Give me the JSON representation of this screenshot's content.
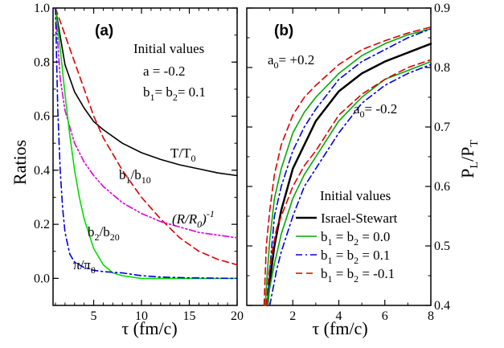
{
  "chart_data": [
    {
      "type": "line",
      "panel_label": "(a)",
      "xlabel": "τ (fm/c)",
      "ylabel": "Ratios",
      "xlim": [
        0.75,
        20
      ],
      "ylim": [
        -0.1,
        1.0
      ],
      "xticks": [
        5,
        10,
        15,
        20
      ],
      "yticks": [
        0.0,
        0.2,
        0.4,
        0.6,
        0.8,
        1.0
      ],
      "ytick_labels": [
        "0.0",
        "0.2",
        "0.4",
        "0.6",
        "0.8",
        "1.0"
      ],
      "legend_title": "Initial values",
      "initial_values": [
        "a = -0.2",
        "b1= b2= 0.1"
      ],
      "series": [
        {
          "name": "T/T0",
          "color": "#000000",
          "dash": "solid",
          "x": [
            1,
            2,
            3,
            4,
            5,
            6,
            8,
            10,
            12,
            14,
            16,
            18,
            20
          ],
          "y": [
            1.0,
            0.79,
            0.69,
            0.63,
            0.58,
            0.55,
            0.5,
            0.465,
            0.44,
            0.42,
            0.405,
            0.39,
            0.38
          ]
        },
        {
          "name": "b1/b10",
          "color": "#dd0000",
          "dash": "dashed",
          "x": [
            1,
            2,
            3,
            4,
            5,
            6,
            8,
            10,
            12,
            14,
            16,
            18,
            20
          ],
          "y": [
            1.0,
            0.9,
            0.8,
            0.7,
            0.6,
            0.52,
            0.4,
            0.3,
            0.22,
            0.15,
            0.1,
            0.07,
            0.05
          ]
        },
        {
          "name": "(R/R0)-1",
          "color": "#dd00dd",
          "dash": "dashdotdot",
          "x": [
            1,
            1.5,
            2,
            3,
            4,
            5,
            6,
            8,
            10,
            12,
            14,
            16,
            18,
            20
          ],
          "y": [
            1.0,
            0.74,
            0.62,
            0.5,
            0.43,
            0.38,
            0.34,
            0.28,
            0.24,
            0.21,
            0.19,
            0.17,
            0.16,
            0.15
          ]
        },
        {
          "name": "b2/b20",
          "color": "#00dd00",
          "dash": "solid",
          "x": [
            1,
            1.5,
            2,
            2.5,
            3,
            3.5,
            4,
            5,
            6,
            7,
            8,
            10,
            12,
            15,
            20
          ],
          "y": [
            1.0,
            0.85,
            0.68,
            0.53,
            0.4,
            0.3,
            0.22,
            0.11,
            0.05,
            0.02,
            0.01,
            0.0,
            0.0,
            0.0,
            0.0
          ]
        },
        {
          "name": "π/π0",
          "color": "#0000dd",
          "dash": "dashdot",
          "x": [
            1,
            1.25,
            1.5,
            1.75,
            2,
            2.5,
            3,
            4,
            5,
            6,
            8,
            10,
            12,
            15,
            20
          ],
          "y": [
            1.0,
            0.62,
            0.4,
            0.26,
            0.17,
            0.09,
            0.06,
            0.04,
            0.03,
            0.025,
            0.02,
            0.01,
            0.005,
            0.002,
            0.0
          ]
        }
      ]
    },
    {
      "type": "line",
      "panel_label": "(b)",
      "xlabel": "τ (fm/c)",
      "ylabel": "PL/PT",
      "xlim": [
        0,
        8
      ],
      "ylim": [
        0.4,
        0.9
      ],
      "xticks": [
        2,
        4,
        6,
        8
      ],
      "yticks": [
        0.4,
        0.5,
        0.6,
        0.7,
        0.8,
        0.9
      ],
      "legend_title": "Initial values",
      "legend_position": "bottom-right",
      "group_labels": [
        "a0= +0.2",
        "a0= -0.2"
      ],
      "series": [
        {
          "name": "Israel-Stewart",
          "color": "#000000",
          "dash": "solid",
          "width": 2.5,
          "x": [
            0.9,
            1.0,
            1.2,
            1.5,
            2,
            2.5,
            3,
            4,
            5,
            6,
            7,
            8
          ],
          "y": [
            0.4,
            0.44,
            0.5,
            0.56,
            0.63,
            0.67,
            0.71,
            0.76,
            0.79,
            0.81,
            0.825,
            0.84
          ]
        },
        {
          "name": "b1 = b2 = 0.0",
          "color": "#00aa00",
          "dash": "solid",
          "x": [
            0.8,
            0.9,
            1.0,
            1.2,
            1.5,
            2,
            2.5,
            3,
            4,
            5,
            6,
            7,
            8
          ],
          "y": [
            0.4,
            0.46,
            0.51,
            0.58,
            0.63,
            0.69,
            0.725,
            0.75,
            0.79,
            0.82,
            0.84,
            0.855,
            0.865
          ]
        },
        {
          "name": "b1 = b2 = 0.1",
          "color": "#0000dd",
          "dash": "dashdot",
          "x": [
            0.9,
            1.0,
            1.2,
            1.5,
            2,
            2.5,
            3,
            4,
            5,
            6,
            7,
            8
          ],
          "y": [
            0.4,
            0.46,
            0.55,
            0.6,
            0.66,
            0.7,
            0.73,
            0.78,
            0.81,
            0.83,
            0.85,
            0.865
          ]
        },
        {
          "name": "b1 = b2 = -0.1",
          "color": "#dd0000",
          "dash": "dashed",
          "x": [
            0.75,
            0.85,
            1.0,
            1.2,
            1.5,
            2,
            2.5,
            3,
            4,
            5,
            6,
            7,
            8
          ],
          "y": [
            0.4,
            0.5,
            0.56,
            0.62,
            0.67,
            0.72,
            0.75,
            0.77,
            0.805,
            0.83,
            0.845,
            0.858,
            0.868
          ]
        },
        {
          "name": "b1 = b2 = 0.0",
          "color": "#00aa00",
          "dash": "solid",
          "x": [
            0.9,
            1.0,
            1.2,
            1.5,
            2,
            2.5,
            3,
            4,
            5,
            6,
            7,
            8
          ],
          "y": [
            0.4,
            0.43,
            0.47,
            0.52,
            0.58,
            0.62,
            0.65,
            0.71,
            0.75,
            0.78,
            0.795,
            0.81
          ]
        },
        {
          "name": "b1 = b2 = 0.1",
          "color": "#0000dd",
          "dash": "dashdot",
          "x": [
            1.0,
            1.1,
            1.3,
            1.5,
            2,
            2.5,
            3,
            4,
            5,
            6,
            7,
            8
          ],
          "y": [
            0.4,
            0.42,
            0.46,
            0.49,
            0.55,
            0.6,
            0.63,
            0.69,
            0.74,
            0.77,
            0.79,
            0.805
          ]
        },
        {
          "name": "b1 = b2 = -0.1",
          "color": "#dd0000",
          "dash": "dashed",
          "x": [
            0.85,
            0.95,
            1.1,
            1.3,
            1.5,
            2,
            2.5,
            3,
            4,
            5,
            6,
            7,
            8
          ],
          "y": [
            0.4,
            0.45,
            0.49,
            0.53,
            0.55,
            0.6,
            0.635,
            0.66,
            0.72,
            0.755,
            0.78,
            0.8,
            0.813
          ]
        }
      ]
    }
  ]
}
